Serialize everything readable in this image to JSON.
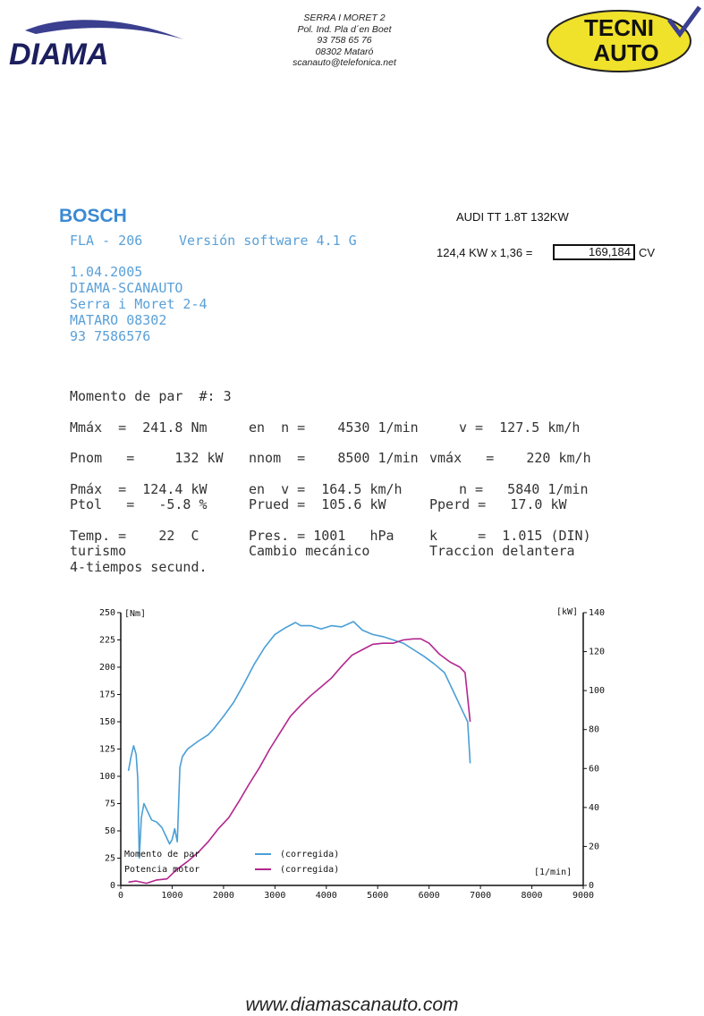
{
  "header": {
    "logo_text": "DIAMA",
    "address_lines": [
      "SERRA I MORET 2",
      "Pol. Ind. Pla d´en Boet",
      "93 758 65 76",
      "08302 Mataró",
      "scanauto@telefonica.net"
    ],
    "right_logo_line1": "TECNI",
    "right_logo_line2": "AUTO"
  },
  "report": {
    "brand": "BOSCH",
    "device": "FLA - 206",
    "software": "Versión software  4.1 G",
    "car": "AUDI TT 1.8T  132KW",
    "calc_expr": "124,4 KW x 1,36 =",
    "calc_result": "169,184",
    "calc_unit": "CV",
    "date": "1.04.2005",
    "shop_name": "DIAMA-SCANAUTO",
    "shop_street": "Serra i Moret 2-4",
    "shop_city": "MATARO 08302",
    "shop_phone": "93 7586576"
  },
  "measurements": {
    "title": "Momento de par  #: 3",
    "mmax": "Mmáx  =  241.8 Nm",
    "mmax_n": "en  n =    4530 1/min",
    "mmax_v": "v =  127.5 km/h",
    "pnom": "Pnom   =     132 kW",
    "nnom": "nnom  =    8500 1/min",
    "vmax": "vmáx   =    220 km/h",
    "pmax": "Pmáx  =  124.4 kW",
    "pmax_v": "en  v =  164.5 km/h",
    "pmax_n": "n =   5840 1/min",
    "ptol": "Ptol   =   -5.8 %",
    "prued": "Prued =  105.6 kW",
    "pperd": "Pperd =   17.0 kW",
    "temp": "Temp. =    22  C",
    "pres": "Pres. = 1001   hPa",
    "k": "k     =  1.015 (DIN)",
    "turismo": "turismo",
    "cambio": "Cambio mecánico",
    "traccion": "Traccion delantera",
    "tiempos": "4-tiempos secund."
  },
  "chart_data": {
    "type": "line",
    "xlabel": "[1/min]",
    "ylabel_left": "[Nm]",
    "ylabel_right": "[kW]",
    "xlim": [
      0,
      9000
    ],
    "ylim_left": [
      0,
      250
    ],
    "ylim_right": [
      0,
      140
    ],
    "x_ticks": [
      "0",
      "1000",
      "2000",
      "3000",
      "4000",
      "5000",
      "6000",
      "7000",
      "8000",
      "9000"
    ],
    "y_left_ticks": [
      "0",
      "25",
      "50",
      "75",
      "100",
      "125",
      "150",
      "175",
      "200",
      "225",
      "250"
    ],
    "y_right_ticks": [
      "0",
      "20",
      "40",
      "60",
      "80",
      "100",
      "120",
      "140"
    ],
    "legend": [
      {
        "name": "Momento de par",
        "tag": "(corregida)",
        "color": "#4a9fd6"
      },
      {
        "name": "Potencia motor",
        "tag": "(corregida)",
        "color": "#b3268e"
      }
    ],
    "series": [
      {
        "name": "Momento de par",
        "axis": "left",
        "color": "#4a9fd6",
        "x": [
          150,
          200,
          250,
          300,
          330,
          360,
          400,
          450,
          500,
          600,
          700,
          800,
          900,
          950,
          1000,
          1050,
          1100,
          1150,
          1200,
          1300,
          1500,
          1700,
          1800,
          2000,
          2200,
          2400,
          2600,
          2800,
          3000,
          3200,
          3400,
          3500,
          3700,
          3900,
          4100,
          4300,
          4530,
          4700,
          4900,
          5100,
          5300,
          5500,
          5700,
          5900,
          6100,
          6300,
          6500,
          6650,
          6750,
          6800
        ],
        "y": [
          105,
          118,
          128,
          120,
          98,
          25,
          62,
          75,
          70,
          60,
          58,
          53,
          43,
          38,
          42,
          52,
          40,
          108,
          118,
          125,
          132,
          138,
          143,
          155,
          168,
          185,
          203,
          218,
          230,
          236,
          241,
          238,
          238,
          235,
          238,
          237,
          241.8,
          234,
          230,
          228,
          225,
          222,
          216,
          210,
          203,
          195,
          175,
          160,
          150,
          112
        ]
      },
      {
        "name": "Potencia motor",
        "axis": "left",
        "color": "#b3268e",
        "x": [
          150,
          300,
          500,
          700,
          900,
          1100,
          1300,
          1500,
          1700,
          1900,
          2100,
          2300,
          2500,
          2700,
          2900,
          3100,
          3300,
          3500,
          3700,
          3900,
          4100,
          4300,
          4500,
          4700,
          4900,
          5100,
          5300,
          5500,
          5700,
          5840,
          6000,
          6200,
          6400,
          6600,
          6700,
          6800
        ],
        "y": [
          3,
          4,
          2,
          5,
          6,
          15,
          22,
          30,
          40,
          52,
          62,
          77,
          93,
          108,
          125,
          140,
          155,
          165,
          174,
          182,
          190,
          201,
          211,
          216,
          221,
          222,
          222,
          225,
          226,
          226,
          222,
          212,
          205,
          200,
          195,
          150
        ]
      }
    ]
  }
}
